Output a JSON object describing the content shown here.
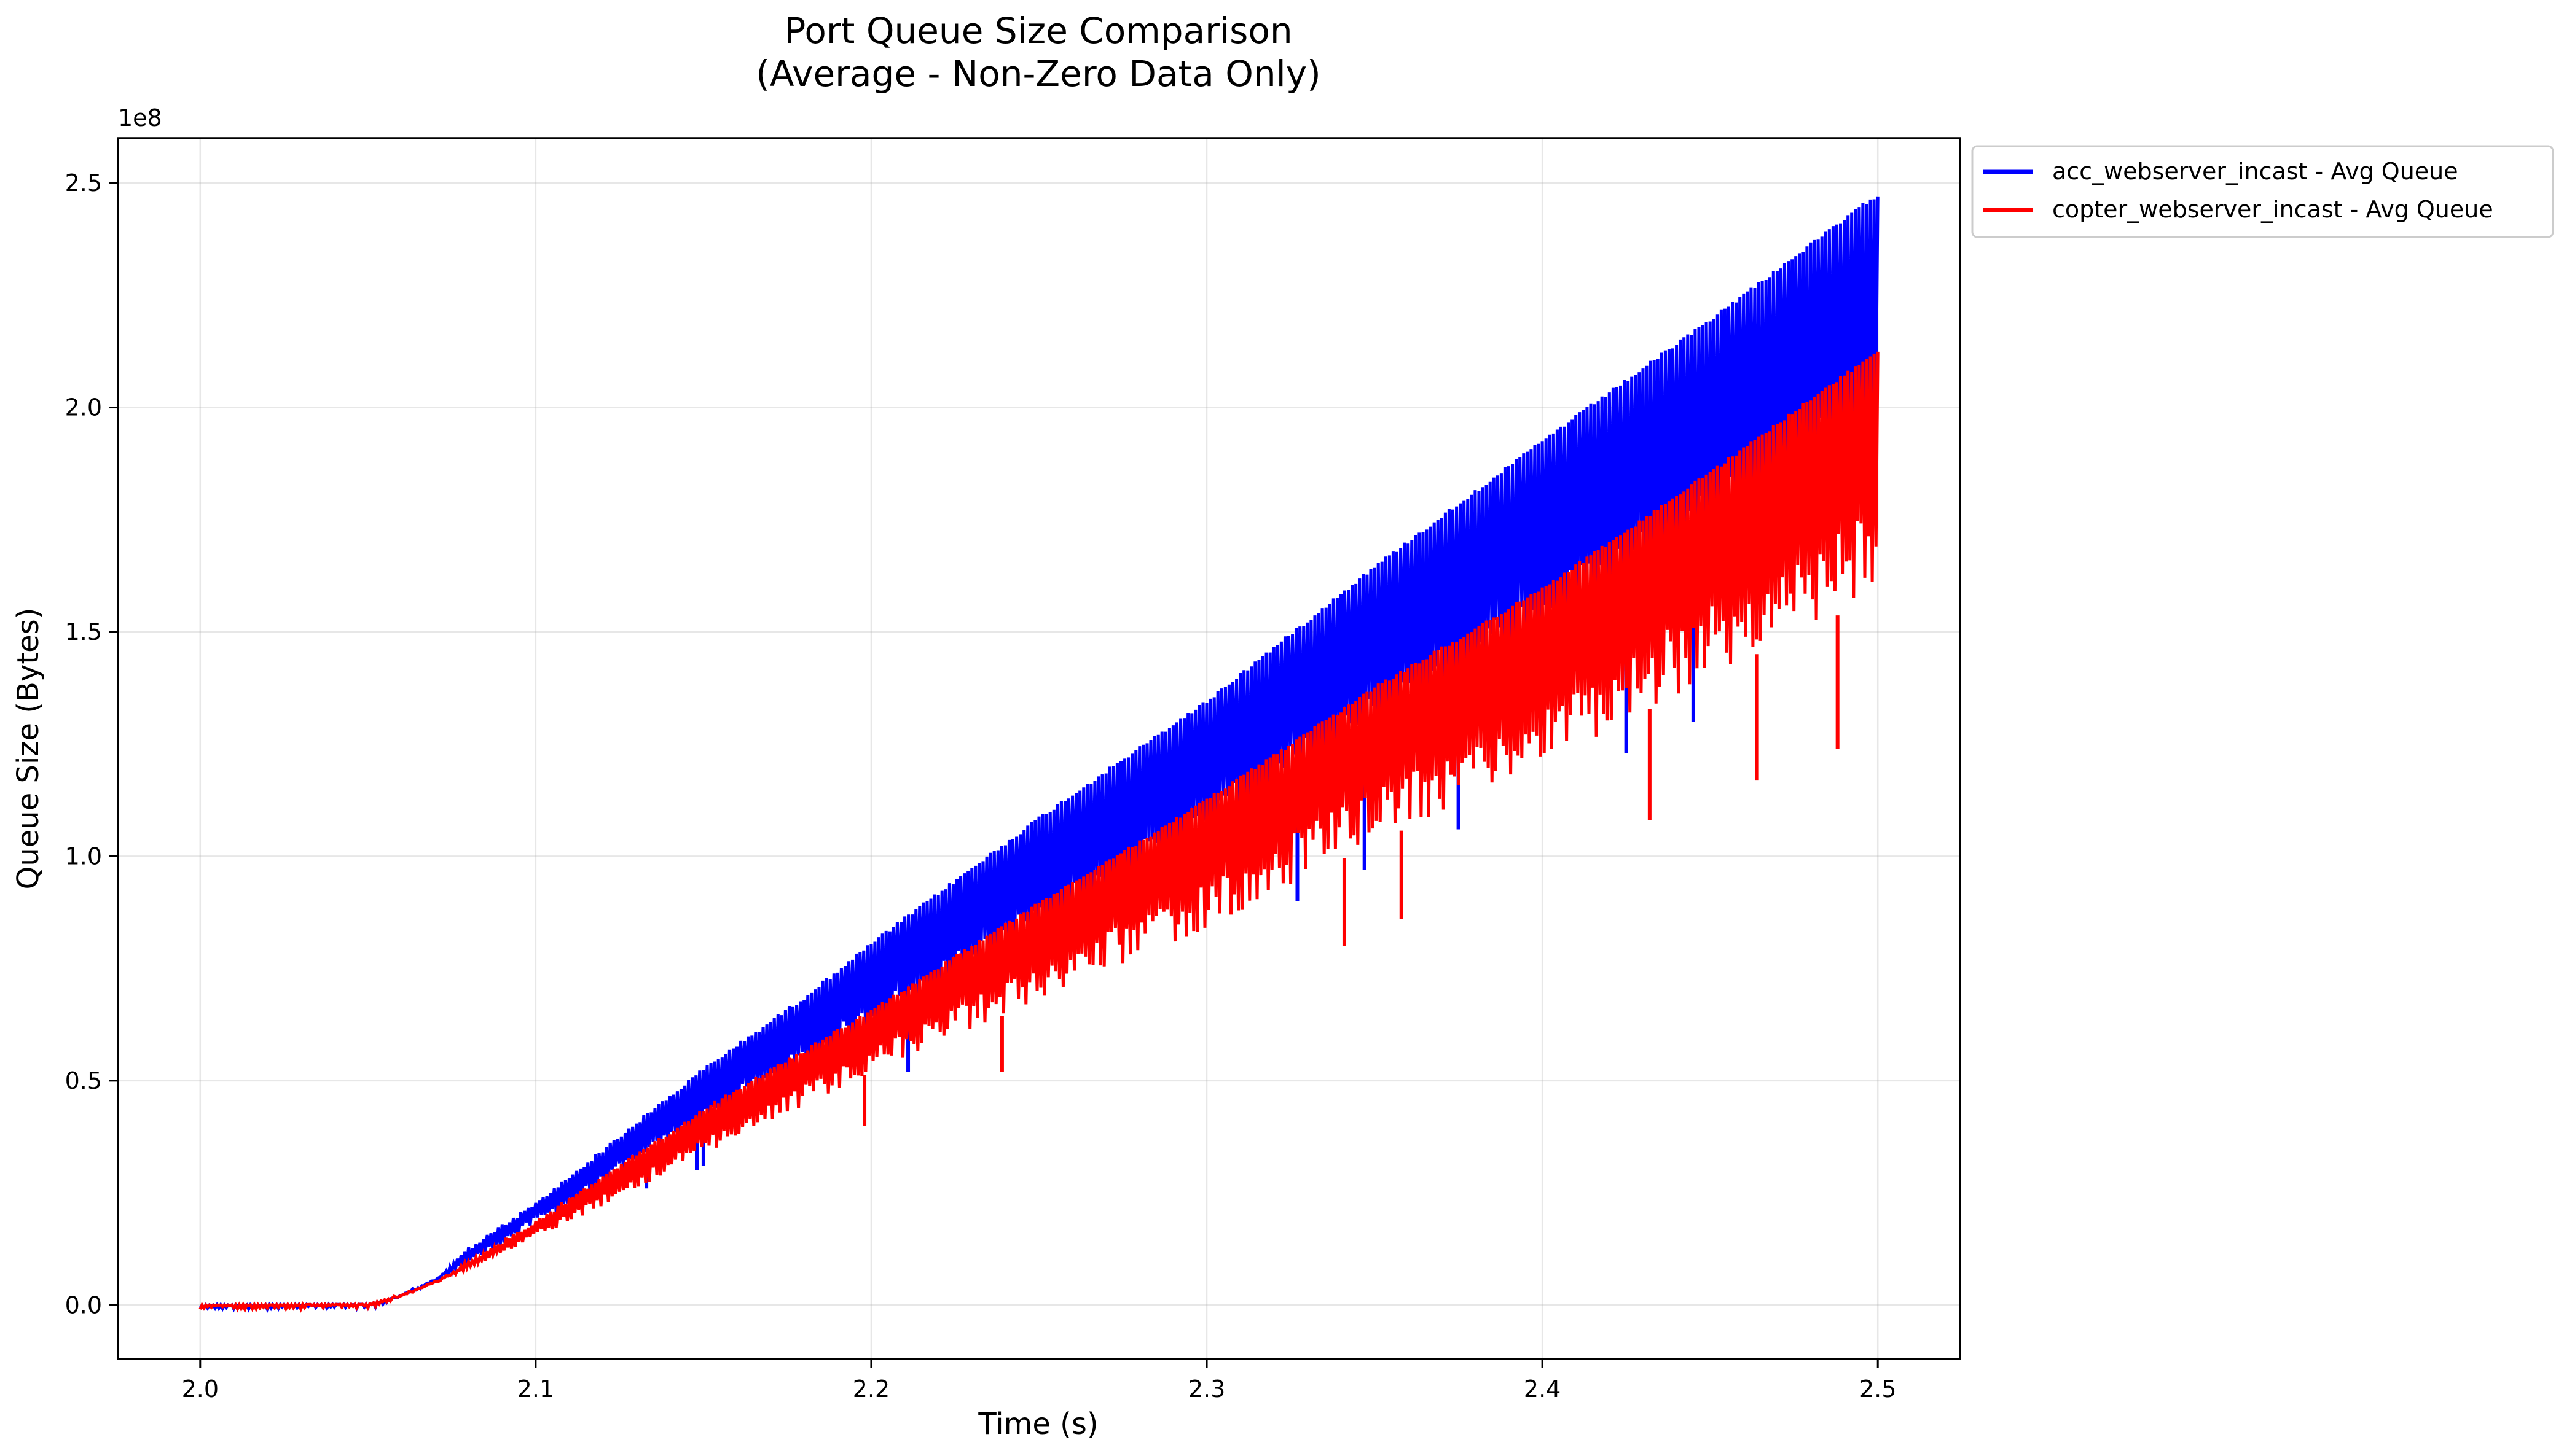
{
  "chart_data": {
    "type": "line",
    "title_line1": "Port Queue Size Comparison",
    "title_line2": "(Average - Non-Zero Data Only)",
    "xlabel": "Time (s)",
    "ylabel": "Queue Size (Bytes)",
    "y_offset_label": "1e8",
    "xlim": [
      1.9755,
      2.5245
    ],
    "ylim": [
      -0.12,
      2.6
    ],
    "x_ticks": [
      2.0,
      2.1,
      2.2,
      2.3,
      2.4,
      2.5
    ],
    "x_tick_labels": [
      "2.0",
      "2.1",
      "2.2",
      "2.3",
      "2.4",
      "2.5"
    ],
    "y_ticks": [
      0.0,
      0.5,
      1.0,
      1.5,
      2.0,
      2.5
    ],
    "y_tick_labels": [
      "0.0",
      "0.5",
      "1.0",
      "1.5",
      "2.0",
      "2.5"
    ],
    "grid": true,
    "legend_position": "outside-top-right",
    "series": [
      {
        "name": "acc_webserver_incast - Avg Queue",
        "color": "#0000ff",
        "upper_envelope": {
          "x": [
            2.0,
            2.05,
            2.055,
            2.06,
            2.07,
            2.08,
            2.1,
            2.12,
            2.15,
            2.18,
            2.2,
            2.25,
            2.3,
            2.35,
            2.4,
            2.45,
            2.5
          ],
          "y": [
            0.0,
            0.002,
            0.01,
            0.025,
            0.06,
            0.13,
            0.23,
            0.35,
            0.53,
            0.69,
            0.81,
            1.09,
            1.35,
            1.65,
            1.93,
            2.2,
            2.48
          ]
        },
        "lower_envelope": {
          "x": [
            2.0,
            2.05,
            2.06,
            2.08,
            2.1,
            2.12,
            2.15,
            2.2,
            2.25,
            2.3,
            2.35,
            2.4,
            2.45,
            2.5
          ],
          "y": [
            0.0,
            0.002,
            0.02,
            0.09,
            0.18,
            0.26,
            0.39,
            0.6,
            0.8,
            1.0,
            1.22,
            1.44,
            1.64,
            1.86
          ]
        },
        "spikes": [
          {
            "x": 2.133,
            "y": 0.26
          },
          {
            "x": 2.148,
            "y": 0.3
          },
          {
            "x": 2.15,
            "y": 0.31
          },
          {
            "x": 2.211,
            "y": 0.52
          },
          {
            "x": 2.327,
            "y": 0.9
          },
          {
            "x": 2.347,
            "y": 0.97
          },
          {
            "x": 2.375,
            "y": 1.06
          },
          {
            "x": 2.425,
            "y": 1.23
          },
          {
            "x": 2.445,
            "y": 1.3
          }
        ]
      },
      {
        "name": "copter_webserver_incast - Avg Queue",
        "color": "#ff0000",
        "upper_envelope": {
          "x": [
            2.0,
            2.05,
            2.06,
            2.07,
            2.08,
            2.1,
            2.12,
            2.15,
            2.2,
            2.25,
            2.3,
            2.35,
            2.4,
            2.45,
            2.5
          ],
          "y": [
            0.0,
            0.002,
            0.025,
            0.055,
            0.1,
            0.19,
            0.29,
            0.44,
            0.66,
            0.9,
            1.13,
            1.38,
            1.6,
            1.86,
            2.13
          ]
        },
        "lower_envelope": {
          "x": [
            2.0,
            2.05,
            2.06,
            2.08,
            2.1,
            2.12,
            2.15,
            2.2,
            2.25,
            2.3,
            2.35,
            2.4,
            2.45,
            2.5
          ],
          "y": [
            0.0,
            0.002,
            0.02,
            0.08,
            0.15,
            0.22,
            0.33,
            0.52,
            0.68,
            0.84,
            1.03,
            1.2,
            1.4,
            1.58
          ]
        },
        "spikes": [
          {
            "x": 2.198,
            "y": 0.4
          },
          {
            "x": 2.239,
            "y": 0.52
          },
          {
            "x": 2.341,
            "y": 0.8
          },
          {
            "x": 2.358,
            "y": 0.86
          },
          {
            "x": 2.432,
            "y": 1.08
          },
          {
            "x": 2.464,
            "y": 1.17
          },
          {
            "x": 2.488,
            "y": 1.24
          }
        ]
      }
    ]
  }
}
